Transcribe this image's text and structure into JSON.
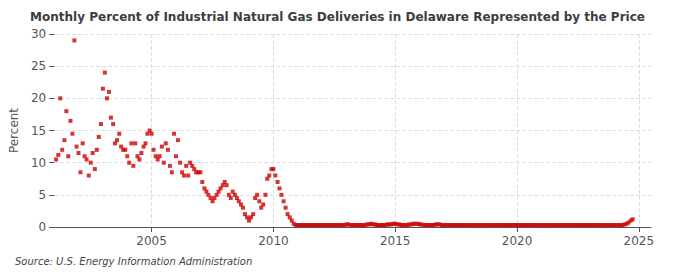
{
  "chart_data": {
    "type": "scatter",
    "title": "Monthly Percent of Industrial Natural Gas Deliveries in Delaware Represented by the Price",
    "ylabel": "Percent",
    "source": "Source: U.S. Energy Information Administration",
    "color": "#cc0000",
    "marker": "square",
    "grid": true,
    "xlim": [
      2001.0,
      2025.5
    ],
    "xticks": [
      2005,
      2010,
      2015,
      2020,
      2025
    ],
    "ylim": [
      0,
      30
    ],
    "yticks": [
      0,
      5,
      10,
      15,
      20,
      25,
      30
    ],
    "x": [
      2001.08,
      2001.17,
      2001.25,
      2001.33,
      2001.42,
      2001.5,
      2001.58,
      2001.67,
      2001.75,
      2001.83,
      2001.92,
      2002.0,
      2002.08,
      2002.17,
      2002.25,
      2002.33,
      2002.42,
      2002.5,
      2002.58,
      2002.67,
      2002.75,
      2002.83,
      2002.92,
      2003.0,
      2003.08,
      2003.17,
      2003.25,
      2003.33,
      2003.42,
      2003.5,
      2003.58,
      2003.67,
      2003.75,
      2003.83,
      2003.92,
      2004.0,
      2004.08,
      2004.17,
      2004.25,
      2004.33,
      2004.42,
      2004.5,
      2004.58,
      2004.67,
      2004.75,
      2004.83,
      2004.92,
      2005.0,
      2005.08,
      2005.17,
      2005.25,
      2005.33,
      2005.42,
      2005.5,
      2005.58,
      2005.67,
      2005.75,
      2005.83,
      2005.92,
      2006.0,
      2006.08,
      2006.17,
      2006.25,
      2006.33,
      2006.42,
      2006.5,
      2006.58,
      2006.67,
      2006.75,
      2006.83,
      2006.92,
      2007.0,
      2007.08,
      2007.17,
      2007.25,
      2007.33,
      2007.42,
      2007.5,
      2007.58,
      2007.67,
      2007.75,
      2007.83,
      2007.92,
      2008.0,
      2008.08,
      2008.17,
      2008.25,
      2008.33,
      2008.42,
      2008.5,
      2008.58,
      2008.67,
      2008.75,
      2008.83,
      2008.92,
      2009.0,
      2009.08,
      2009.17,
      2009.25,
      2009.33,
      2009.42,
      2009.5,
      2009.58,
      2009.67,
      2009.75,
      2009.83,
      2009.92,
      2010.0,
      2010.08,
      2010.17,
      2010.25,
      2010.33,
      2010.42,
      2010.5,
      2010.58,
      2010.67,
      2010.75,
      2010.83,
      2010.92,
      2011.0,
      2011.08,
      2011.17,
      2011.25,
      2011.33,
      2011.42,
      2011.5,
      2011.58,
      2011.67,
      2011.75,
      2011.83,
      2011.92,
      2012.0,
      2012.08,
      2012.17,
      2012.25,
      2012.33,
      2012.42,
      2012.5,
      2012.58,
      2012.67,
      2012.75,
      2012.83,
      2012.92,
      2013.0,
      2013.08,
      2013.17,
      2013.25,
      2013.33,
      2013.42,
      2013.5,
      2013.58,
      2013.67,
      2013.75,
      2013.83,
      2013.92,
      2014.0,
      2014.08,
      2014.17,
      2014.25,
      2014.33,
      2014.42,
      2014.5,
      2014.58,
      2014.67,
      2014.75,
      2014.83,
      2014.92,
      2015.0,
      2015.08,
      2015.17,
      2015.25,
      2015.33,
      2015.42,
      2015.5,
      2015.58,
      2015.67,
      2015.75,
      2015.83,
      2015.92,
      2016.0,
      2016.08,
      2016.17,
      2016.25,
      2016.33,
      2016.42,
      2016.5,
      2016.58,
      2016.67,
      2016.75,
      2016.83,
      2016.92,
      2017.0,
      2017.08,
      2017.17,
      2017.25,
      2017.33,
      2017.42,
      2017.5,
      2017.58,
      2017.67,
      2017.75,
      2017.83,
      2017.92,
      2018.0,
      2018.08,
      2018.17,
      2018.25,
      2018.33,
      2018.42,
      2018.5,
      2018.58,
      2018.67,
      2018.75,
      2018.83,
      2018.92,
      2019.0,
      2019.08,
      2019.17,
      2019.25,
      2019.33,
      2019.42,
      2019.5,
      2019.58,
      2019.67,
      2019.75,
      2019.83,
      2019.92,
      2020.0,
      2020.08,
      2020.17,
      2020.25,
      2020.33,
      2020.42,
      2020.5,
      2020.58,
      2020.67,
      2020.75,
      2020.83,
      2020.92,
      2021.0,
      2021.08,
      2021.17,
      2021.25,
      2021.33,
      2021.42,
      2021.5,
      2021.58,
      2021.67,
      2021.75,
      2021.83,
      2021.92,
      2022.0,
      2022.08,
      2022.17,
      2022.25,
      2022.33,
      2022.42,
      2022.5,
      2022.58,
      2022.67,
      2022.75,
      2022.83,
      2022.92,
      2023.0,
      2023.08,
      2023.17,
      2023.25,
      2023.33,
      2023.42,
      2023.5,
      2023.58,
      2023.67,
      2023.75,
      2023.83,
      2023.92,
      2024.0,
      2024.08,
      2024.17,
      2024.25,
      2024.33,
      2024.42,
      2024.5,
      2024.58,
      2024.67,
      2024.75
    ],
    "values": [
      10.5,
      11.2,
      20.0,
      12.0,
      13.5,
      18.0,
      11.0,
      16.5,
      14.5,
      29.0,
      12.5,
      11.5,
      8.5,
      13.0,
      11.0,
      10.5,
      8.0,
      10.0,
      11.5,
      9.0,
      12.0,
      14.0,
      16.0,
      21.5,
      24.0,
      20.0,
      21.0,
      17.0,
      16.0,
      13.0,
      13.5,
      14.5,
      12.5,
      12.0,
      12.0,
      11.0,
      10.0,
      13.0,
      9.5,
      13.0,
      11.0,
      10.5,
      11.5,
      12.5,
      13.0,
      14.5,
      15.0,
      14.5,
      12.0,
      11.0,
      10.5,
      11.0,
      12.5,
      10.0,
      13.0,
      12.0,
      9.5,
      8.5,
      14.5,
      11.0,
      13.5,
      10.0,
      8.5,
      8.0,
      9.5,
      8.0,
      10.0,
      9.5,
      9.0,
      8.5,
      8.5,
      8.5,
      7.0,
      6.0,
      5.5,
      5.0,
      4.5,
      4.0,
      4.5,
      5.0,
      5.5,
      6.0,
      6.5,
      7.0,
      6.5,
      5.0,
      4.5,
      5.5,
      5.0,
      4.5,
      4.0,
      3.5,
      3.0,
      2.0,
      1.5,
      1.0,
      1.5,
      2.0,
      4.5,
      5.0,
      4.0,
      3.0,
      3.5,
      5.0,
      7.5,
      8.0,
      9.0,
      9.0,
      8.0,
      7.0,
      6.0,
      5.0,
      4.0,
      3.0,
      2.0,
      1.5,
      1.0,
      0.5,
      0.3,
      0.3,
      0.3,
      0.3,
      0.3,
      0.3,
      0.3,
      0.3,
      0.3,
      0.3,
      0.3,
      0.3,
      0.3,
      0.3,
      0.3,
      0.3,
      0.3,
      0.3,
      0.3,
      0.3,
      0.3,
      0.3,
      0.3,
      0.3,
      0.3,
      0.4,
      0.4,
      0.3,
      0.3,
      0.3,
      0.3,
      0.3,
      0.3,
      0.3,
      0.3,
      0.4,
      0.4,
      0.5,
      0.4,
      0.4,
      0.3,
      0.3,
      0.3,
      0.3,
      0.3,
      0.4,
      0.4,
      0.4,
      0.5,
      0.5,
      0.4,
      0.4,
      0.3,
      0.3,
      0.3,
      0.3,
      0.4,
      0.4,
      0.5,
      0.5,
      0.5,
      0.4,
      0.4,
      0.3,
      0.3,
      0.3,
      0.3,
      0.3,
      0.3,
      0.4,
      0.4,
      0.4,
      0.3,
      0.3,
      0.3,
      0.3,
      0.3,
      0.3,
      0.3,
      0.3,
      0.3,
      0.3,
      0.3,
      0.3,
      0.3,
      0.3,
      0.3,
      0.3,
      0.3,
      0.3,
      0.3,
      0.3,
      0.3,
      0.3,
      0.3,
      0.3,
      0.3,
      0.3,
      0.3,
      0.3,
      0.3,
      0.3,
      0.3,
      0.3,
      0.3,
      0.3,
      0.3,
      0.3,
      0.3,
      0.3,
      0.3,
      0.3,
      0.3,
      0.3,
      0.3,
      0.3,
      0.3,
      0.3,
      0.3,
      0.3,
      0.3,
      0.3,
      0.3,
      0.3,
      0.3,
      0.3,
      0.3,
      0.3,
      0.3,
      0.3,
      0.3,
      0.3,
      0.3,
      0.3,
      0.3,
      0.3,
      0.3,
      0.3,
      0.3,
      0.3,
      0.3,
      0.3,
      0.3,
      0.3,
      0.3,
      0.3,
      0.3,
      0.3,
      0.3,
      0.3,
      0.3,
      0.3,
      0.3,
      0.3,
      0.3,
      0.3,
      0.3,
      0.3,
      0.3,
      0.3,
      0.3,
      0.3,
      0.4,
      0.5,
      0.7,
      1.0,
      1.2
    ]
  }
}
